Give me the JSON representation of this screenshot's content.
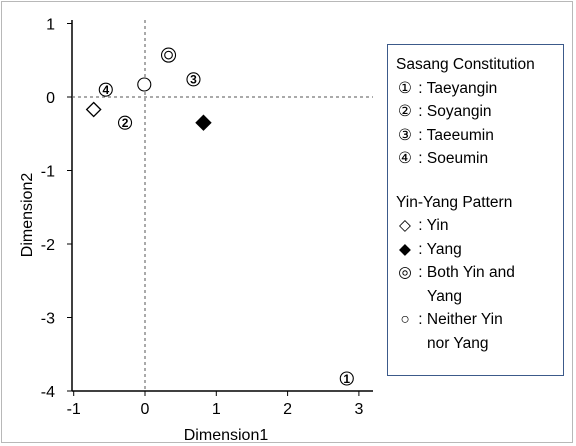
{
  "chart_data": {
    "type": "scatter",
    "xlabel": "Dimension1",
    "ylabel": "Dimension2",
    "xlim": [
      -1,
      3.2
    ],
    "ylim": [
      -4,
      1.1
    ],
    "xticks": [
      "-1",
      "0",
      "1",
      "2",
      "3"
    ],
    "yticks": [
      "1",
      "0",
      "-1",
      "-2",
      "-3",
      "-4"
    ],
    "xtick_values": [
      -1,
      0,
      1,
      2,
      3
    ],
    "ytick_values": [
      1,
      0,
      -1,
      -2,
      -3,
      -4
    ],
    "reference_lines": {
      "x": 0,
      "y": 0,
      "style": "dashed"
    },
    "grid": false,
    "legend_placement": "right",
    "points": [
      {
        "label": "①",
        "group": "Sasang Constitution",
        "marker": "circled-1",
        "x": 2.83,
        "y": -3.83
      },
      {
        "label": "②",
        "group": "Sasang Constitution",
        "marker": "circled-2",
        "x": -0.28,
        "y": -0.35
      },
      {
        "label": "③",
        "group": "Sasang Constitution",
        "marker": "circled-3",
        "x": 0.68,
        "y": 0.24
      },
      {
        "label": "④",
        "group": "Sasang Constitution",
        "marker": "circled-4",
        "x": -0.55,
        "y": 0.1
      },
      {
        "label": "◇",
        "group": "Yin-Yang Pattern",
        "marker": "diamond-open",
        "x": -0.72,
        "y": -0.17
      },
      {
        "label": "◆",
        "group": "Yin-Yang Pattern",
        "marker": "diamond-filled",
        "x": 0.82,
        "y": -0.35
      },
      {
        "label": "◎",
        "group": "Yin-Yang Pattern",
        "marker": "double-circle",
        "x": 0.33,
        "y": 0.57
      },
      {
        "label": "○",
        "group": "Yin-Yang Pattern",
        "marker": "circle-open",
        "x": -0.01,
        "y": 0.17
      }
    ],
    "legend": {
      "title1": "Sasang Constitution",
      "constitutions": [
        {
          "symbol": "①",
          "text": " : Taeyangin"
        },
        {
          "symbol": "②",
          "text": " : Soyangin"
        },
        {
          "symbol": "③",
          "text": " : Taeeumin"
        },
        {
          "symbol": "④",
          "text": " : Soeumin"
        }
      ],
      "title2": "Yin-Yang Pattern",
      "patterns": [
        {
          "symbol": "◇",
          "text": " : Yin",
          "cont": ""
        },
        {
          "symbol": "◆",
          "text": " : Yang",
          "cont": ""
        },
        {
          "symbol": "◎",
          "text": " : Both Yin and",
          "cont": "Yang"
        },
        {
          "symbol": "○",
          "text": " : Neither Yin",
          "cont": "nor Yang"
        }
      ]
    }
  }
}
